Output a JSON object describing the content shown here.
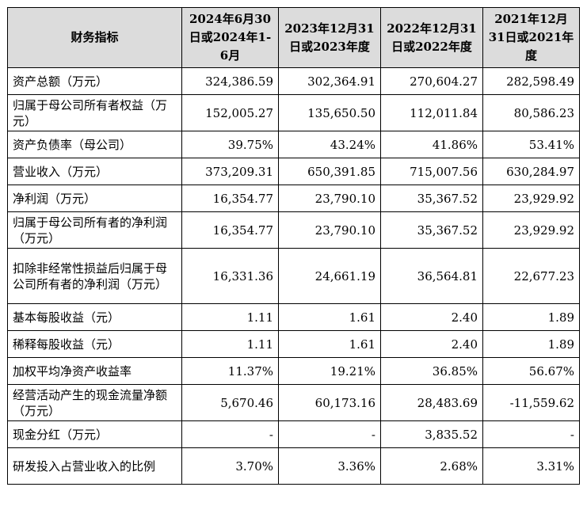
{
  "headers": {
    "metric": "财务指标",
    "p2024": "2024年6月30日或2024年1-6月",
    "p2023": "2023年12月31日或2023年度",
    "p2022": "2022年12月31日或2022年度",
    "p2021": "2021年12月31日或2021年度"
  },
  "rows": [
    {
      "label": "资产总额（万元）",
      "v2024": "324,386.59",
      "v2023": "302,364.91",
      "v2022": "270,604.27",
      "v2021": "282,598.49"
    },
    {
      "label": "归属于母公司所有者权益（万元）",
      "v2024": "152,005.27",
      "v2023": "135,650.50",
      "v2022": "112,011.84",
      "v2021": "80,586.23"
    },
    {
      "label": "资产负债率（母公司）",
      "v2024": "39.75%",
      "v2023": "43.24%",
      "v2022": "41.86%",
      "v2021": "53.41%"
    },
    {
      "label": "营业收入（万元）",
      "v2024": "373,209.31",
      "v2023": "650,391.85",
      "v2022": "715,007.56",
      "v2021": "630,284.97"
    },
    {
      "label": "净利润（万元）",
      "v2024": "16,354.77",
      "v2023": "23,790.10",
      "v2022": "35,367.52",
      "v2021": "23,929.92"
    },
    {
      "label": "归属于母公司所有者的净利润（万元）",
      "v2024": "16,354.77",
      "v2023": "23,790.10",
      "v2022": "35,367.52",
      "v2021": "23,929.92"
    },
    {
      "label": "扣除非经常性损益后归属于母公司所有者的净利润（万元）",
      "v2024": "16,331.36",
      "v2023": "24,661.19",
      "v2022": "36,564.81",
      "v2021": "22,677.23"
    },
    {
      "label": "基本每股收益（元）",
      "v2024": "1.11",
      "v2023": "1.61",
      "v2022": "2.40",
      "v2021": "1.89"
    },
    {
      "label": "稀释每股收益（元）",
      "v2024": "1.11",
      "v2023": "1.61",
      "v2022": "2.40",
      "v2021": "1.89"
    },
    {
      "label": "加权平均净资产收益率",
      "v2024": "11.37%",
      "v2023": "19.21%",
      "v2022": "36.85%",
      "v2021": "56.67%"
    },
    {
      "label": "经营活动产生的现金流量净额（万元）",
      "v2024": "5,670.46",
      "v2023": "60,173.16",
      "v2022": "28,483.69",
      "v2021": "-11,559.62"
    },
    {
      "label": "现金分红（万元）",
      "v2024": "-",
      "v2023": "-",
      "v2022": "3,835.52",
      "v2021": "-"
    },
    {
      "label": "研发投入占营业收入的比例",
      "v2024": "3.70%",
      "v2023": "3.36%",
      "v2022": "2.68%",
      "v2021": "3.31%"
    }
  ]
}
